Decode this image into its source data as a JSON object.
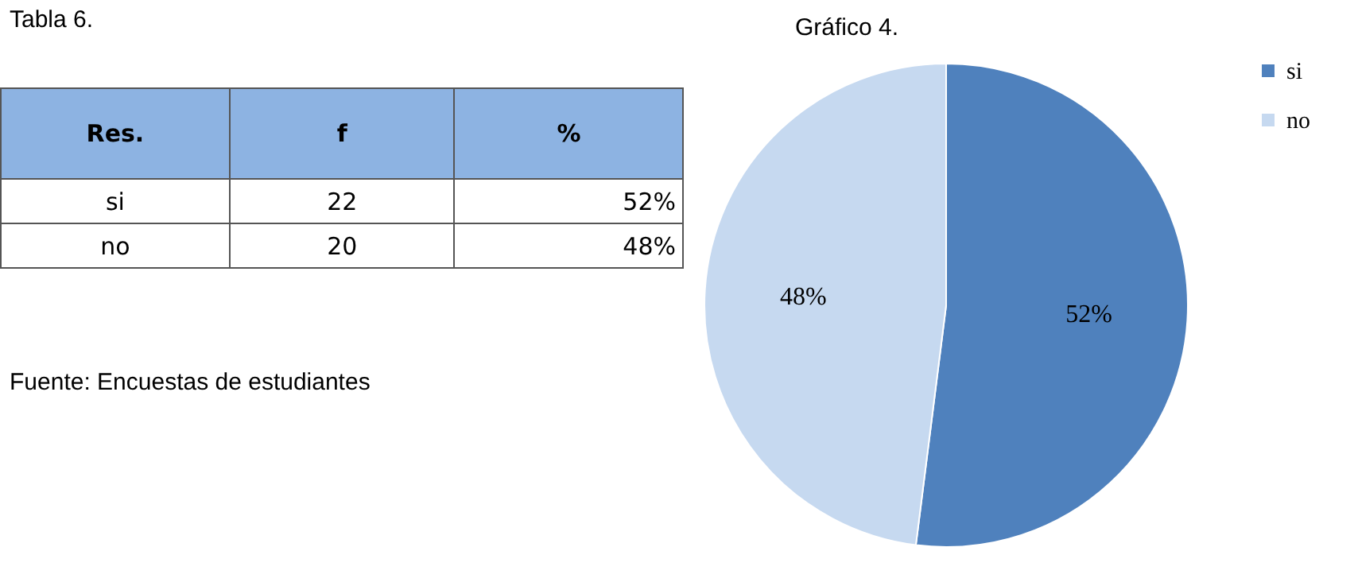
{
  "chart_data": [
    {
      "type": "other",
      "title": "Tabla 6.",
      "annotations": [
        "Res.",
        "f",
        "%",
        "si",
        "22",
        "52%",
        "no",
        "20",
        "48%",
        "Fuente: Encuestas de estudiantes"
      ]
    },
    {
      "type": "pie",
      "title": "Gráfico 4.",
      "categories": [
        "si",
        "no"
      ],
      "values": [
        52,
        48
      ],
      "colors": [
        "#4f81bd",
        "#c6d9f0"
      ],
      "value_labels": [
        "52%",
        "48%"
      ],
      "legend": "right"
    }
  ]
}
